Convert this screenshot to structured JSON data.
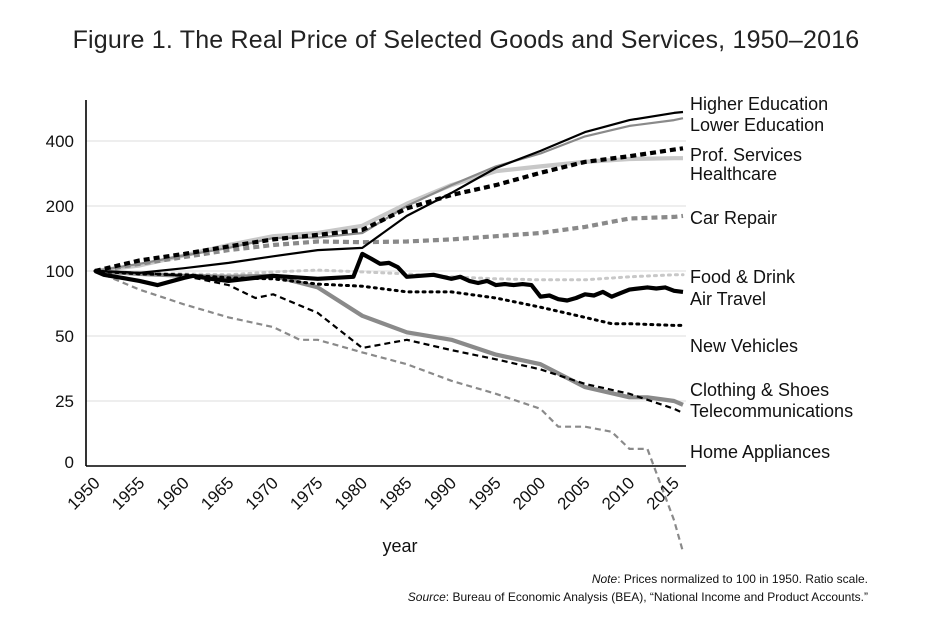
{
  "title": "Figure 1. The Real Price of Selected Goods and Services, 1950–2016",
  "note": {
    "note_label": "Note",
    "note_text": ": Prices normalized to 100 in 1950. Ratio scale.",
    "source_label": "Source",
    "source_text": ": Bureau of Economic Analysis (BEA), “National Income and Product Accounts.”"
  },
  "chart_data": {
    "type": "line",
    "title": "Figure 1. The Real Price of Selected Goods and Services, 1950–2016",
    "xlabel": "year",
    "ylabel": "",
    "xlim": [
      1950,
      2016
    ],
    "x_ticks": [
      1950,
      1955,
      1960,
      1965,
      1970,
      1975,
      1980,
      1985,
      1990,
      1995,
      2000,
      2005,
      2010,
      2015
    ],
    "y_scale": "log",
    "y_ticks": [
      0,
      25,
      50,
      100,
      200,
      400
    ],
    "y_tick_labels": [
      "0",
      "25",
      "50",
      "100",
      "200",
      "400"
    ],
    "grid": "horizontal",
    "colors": {
      "black": "#000000",
      "gray": "#8a8a8a",
      "light_gray": "#c8c8c8"
    },
    "series": [
      {
        "name": "Higher Education",
        "color": "#000000",
        "style": "solid-thin",
        "x": [
          1950,
          1955,
          1960,
          1965,
          1970,
          1975,
          1980,
          1985,
          1990,
          1995,
          2000,
          2005,
          2010,
          2015,
          2016
        ],
        "y": [
          100,
          98,
          103,
          109,
          117,
          125,
          128,
          180,
          230,
          300,
          360,
          440,
          500,
          540,
          545
        ]
      },
      {
        "name": "Lower Education",
        "color": "#8a8a8a",
        "style": "solid-thin",
        "x": [
          1950,
          1955,
          1960,
          1965,
          1970,
          1975,
          1980,
          1985,
          1990,
          1995,
          2000,
          2005,
          2010,
          2015,
          2016
        ],
        "y": [
          100,
          108,
          118,
          128,
          142,
          143,
          150,
          200,
          250,
          305,
          350,
          420,
          470,
          500,
          510
        ]
      },
      {
        "name": "Prof. Services",
        "color": "#000000",
        "style": "dashed-thick",
        "x": [
          1950,
          1955,
          1960,
          1965,
          1970,
          1975,
          1980,
          1985,
          1990,
          1995,
          2000,
          2005,
          2010,
          2015,
          2016
        ],
        "y": [
          100,
          112,
          120,
          130,
          140,
          147,
          155,
          195,
          225,
          250,
          285,
          320,
          340,
          365,
          370
        ]
      },
      {
        "name": "Healthcare",
        "color": "#c8c8c8",
        "style": "solid-thick",
        "x": [
          1950,
          1955,
          1960,
          1965,
          1970,
          1975,
          1980,
          1985,
          1990,
          1995,
          2000,
          2005,
          2010,
          2015,
          2016
        ],
        "y": [
          100,
          106,
          118,
          132,
          145,
          150,
          162,
          205,
          250,
          290,
          305,
          320,
          330,
          333,
          333
        ]
      },
      {
        "name": "Car Repair",
        "color": "#8a8a8a",
        "style": "dashed-thick",
        "x": [
          1950,
          1955,
          1960,
          1965,
          1970,
          1975,
          1980,
          1985,
          1990,
          1995,
          2000,
          2005,
          2010,
          2015,
          2016
        ],
        "y": [
          100,
          108,
          116,
          125,
          132,
          137,
          136,
          137,
          140,
          145,
          150,
          160,
          175,
          178,
          180
        ]
      },
      {
        "name": "Food & Drink",
        "color": "#c8c8c8",
        "style": "dotted",
        "x": [
          1950,
          1955,
          1960,
          1965,
          1970,
          1975,
          1980,
          1985,
          1990,
          1995,
          2000,
          2005,
          2010,
          2015,
          2016
        ],
        "y": [
          100,
          98,
          97,
          96,
          99,
          101,
          99,
          97,
          94,
          92,
          91,
          91,
          94,
          96,
          96
        ]
      },
      {
        "name": "Air Travel",
        "color": "#000000",
        "style": "solid-thick",
        "x": [
          1950,
          1951,
          1955,
          1957,
          1960,
          1961,
          1963,
          1965,
          1970,
          1975,
          1979,
          1980,
          1981,
          1982,
          1983,
          1984,
          1985,
          1988,
          1990,
          1991,
          1992,
          1993,
          1994,
          1995,
          1996,
          1997,
          1998,
          1999,
          2000,
          2001,
          2002,
          2003,
          2004,
          2005,
          2006,
          2007,
          2008,
          2009,
          2010,
          2012,
          2013,
          2014,
          2015,
          2016
        ],
        "y": [
          100,
          96,
          90,
          86,
          93,
          95,
          92,
          90,
          95,
          92,
          94,
          120,
          114,
          108,
          109,
          104,
          94,
          96,
          92,
          94,
          90,
          88,
          90,
          86,
          87,
          86,
          87,
          86,
          76,
          77,
          74,
          73,
          75,
          78,
          77,
          80,
          76,
          79,
          82,
          84,
          83,
          84,
          81,
          80
        ]
      },
      {
        "name": "New Vehicles",
        "color": "#000000",
        "style": "dotted",
        "x": [
          1950,
          1955,
          1960,
          1965,
          1970,
          1975,
          1980,
          1985,
          1990,
          1995,
          2000,
          2005,
          2008,
          2010,
          2015,
          2016
        ],
        "y": [
          100,
          97,
          96,
          93,
          92,
          87,
          85,
          80,
          80,
          75,
          68,
          61,
          57,
          57,
          56,
          56
        ]
      },
      {
        "name": "Clothing & Shoes",
        "color": "#8a8a8a",
        "style": "solid-thick",
        "x": [
          1950,
          1955,
          1960,
          1965,
          1970,
          1975,
          1980,
          1985,
          1990,
          1995,
          2000,
          2005,
          2010,
          2012,
          2015,
          2016
        ],
        "y": [
          100,
          97,
          95,
          94,
          95,
          84,
          62,
          52,
          48,
          41,
          37,
          29,
          26,
          26,
          25,
          24
        ]
      },
      {
        "name": "Telecommunications",
        "color": "#000000",
        "style": "dashed",
        "x": [
          1950,
          1955,
          1960,
          1965,
          1968,
          1970,
          1975,
          1980,
          1985,
          1990,
          1995,
          2000,
          2005,
          2010,
          2015,
          2016
        ],
        "y": [
          100,
          98,
          95,
          86,
          75,
          78,
          64,
          44,
          48,
          43,
          39,
          35,
          30,
          27,
          23,
          22
        ]
      },
      {
        "name": "Home Appliances",
        "color": "#8a8a8a",
        "style": "dashed",
        "x": [
          1950,
          1955,
          1960,
          1965,
          1970,
          1973,
          1975,
          1980,
          1985,
          1990,
          1995,
          2000,
          2002,
          2005,
          2008,
          2010,
          2012,
          2015,
          2016
        ],
        "y": [
          100,
          82,
          70,
          61,
          55,
          48,
          48,
          42,
          37,
          31,
          27,
          23,
          19,
          19,
          18,
          15,
          15,
          7,
          5
        ]
      }
    ]
  }
}
